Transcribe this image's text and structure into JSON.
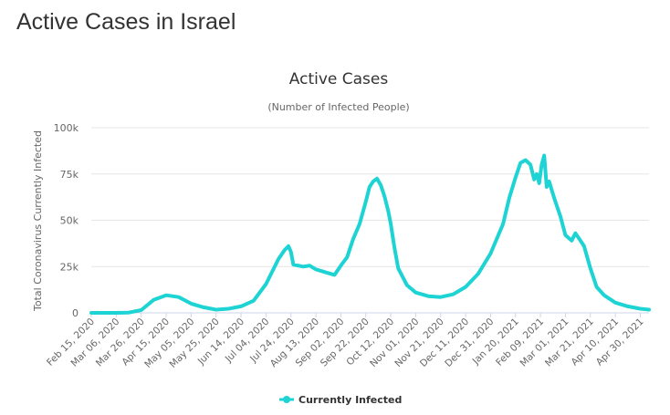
{
  "page": {
    "heading": "Active Cases in Israel"
  },
  "chart_data": {
    "type": "line",
    "title": "Active Cases",
    "subtitle": "(Number of Infected People)",
    "xlabel": "",
    "ylabel": "Total Coronavirus Currently Infected",
    "ylim": [
      0,
      100000
    ],
    "yticks": [
      0,
      25000,
      50000,
      75000,
      100000
    ],
    "ytick_labels": [
      "0",
      "25k",
      "50k",
      "75k",
      "100k"
    ],
    "grid": true,
    "legend_position": "bottom-center",
    "xtick_labels": [
      "Feb 15, 2020",
      "Mar 06, 2020",
      "Mar 26, 2020",
      "Apr 15, 2020",
      "May 05, 2020",
      "May 25, 2020",
      "Jun 14, 2020",
      "Jul 04, 2020",
      "Jul 24, 2020",
      "Aug 13, 2020",
      "Sep 02, 2020",
      "Sep 22, 2020",
      "Oct 12, 2020",
      "Nov 01, 2020",
      "Nov 21, 2020",
      "Dec 11, 2020",
      "Dec 31, 2020",
      "Jan 20, 2021",
      "Feb 09, 2021",
      "Mar 01, 2021",
      "Mar 21, 2021",
      "Apr 10, 2021",
      "Apr 30, 2021"
    ],
    "series": [
      {
        "name": "Currently Infected",
        "color": "#1ed3d3",
        "points": [
          [
            "Feb 15, 2020",
            0
          ],
          [
            "Mar 06, 2020",
            0
          ],
          [
            "Mar 16, 2020",
            150
          ],
          [
            "Mar 26, 2020",
            1500
          ],
          [
            "Apr 05, 2020",
            7000
          ],
          [
            "Apr 15, 2020",
            9500
          ],
          [
            "Apr 25, 2020",
            8500
          ],
          [
            "May 05, 2020",
            5000
          ],
          [
            "May 15, 2020",
            3000
          ],
          [
            "May 25, 2020",
            1700
          ],
          [
            "Jun 04, 2020",
            2200
          ],
          [
            "Jun 14, 2020",
            3500
          ],
          [
            "Jun 24, 2020",
            6500
          ],
          [
            "Jul 04, 2020",
            15500
          ],
          [
            "Jul 14, 2020",
            29000
          ],
          [
            "Jul 19, 2020",
            34000
          ],
          [
            "Jul 22, 2020",
            36000
          ],
          [
            "Jul 24, 2020",
            33000
          ],
          [
            "Jul 26, 2020",
            26000
          ],
          [
            "Aug 03, 2020",
            25000
          ],
          [
            "Aug 08, 2020",
            25500
          ],
          [
            "Aug 13, 2020",
            23500
          ],
          [
            "Aug 23, 2020",
            21500
          ],
          [
            "Aug 28, 2020",
            20500
          ],
          [
            "Sep 02, 2020",
            25500
          ],
          [
            "Sep 07, 2020",
            30000
          ],
          [
            "Sep 12, 2020",
            40000
          ],
          [
            "Sep 17, 2020",
            48000
          ],
          [
            "Sep 22, 2020",
            60000
          ],
          [
            "Sep 25, 2020",
            68000
          ],
          [
            "Sep 28, 2020",
            71000
          ],
          [
            "Oct 01, 2020",
            72500
          ],
          [
            "Oct 04, 2020",
            69000
          ],
          [
            "Oct 07, 2020",
            63000
          ],
          [
            "Oct 10, 2020",
            55000
          ],
          [
            "Oct 12, 2020",
            48000
          ],
          [
            "Oct 15, 2020",
            35000
          ],
          [
            "Oct 18, 2020",
            24000
          ],
          [
            "Oct 25, 2020",
            15000
          ],
          [
            "Nov 01, 2020",
            11000
          ],
          [
            "Nov 11, 2020",
            9000
          ],
          [
            "Nov 21, 2020",
            8500
          ],
          [
            "Dec 01, 2020",
            10000
          ],
          [
            "Dec 11, 2020",
            14000
          ],
          [
            "Dec 21, 2020",
            21000
          ],
          [
            "Dec 31, 2020",
            32000
          ],
          [
            "Jan 10, 2021",
            48000
          ],
          [
            "Jan 15, 2021",
            62000
          ],
          [
            "Jan 20, 2021",
            73000
          ],
          [
            "Jan 24, 2021",
            81000
          ],
          [
            "Jan 28, 2021",
            82500
          ],
          [
            "Feb 01, 2021",
            80000
          ],
          [
            "Feb 04, 2021",
            72000
          ],
          [
            "Feb 06, 2021",
            75000
          ],
          [
            "Feb 08, 2021",
            70000
          ],
          [
            "Feb 10, 2021",
            80000
          ],
          [
            "Feb 12, 2021",
            85000
          ],
          [
            "Feb 14, 2021",
            68000
          ],
          [
            "Feb 16, 2021",
            71000
          ],
          [
            "Feb 20, 2021",
            62000
          ],
          [
            "Feb 25, 2021",
            52000
          ],
          [
            "Mar 01, 2021",
            42000
          ],
          [
            "Mar 06, 2021",
            39000
          ],
          [
            "Mar 09, 2021",
            43000
          ],
          [
            "Mar 12, 2021",
            40000
          ],
          [
            "Mar 16, 2021",
            36000
          ],
          [
            "Mar 21, 2021",
            24000
          ],
          [
            "Mar 26, 2021",
            14000
          ],
          [
            "Apr 01, 2021",
            9500
          ],
          [
            "Apr 10, 2021",
            5500
          ],
          [
            "Apr 20, 2021",
            3500
          ],
          [
            "Apr 30, 2021",
            2200
          ],
          [
            "May 07, 2021",
            1700
          ]
        ]
      }
    ]
  }
}
